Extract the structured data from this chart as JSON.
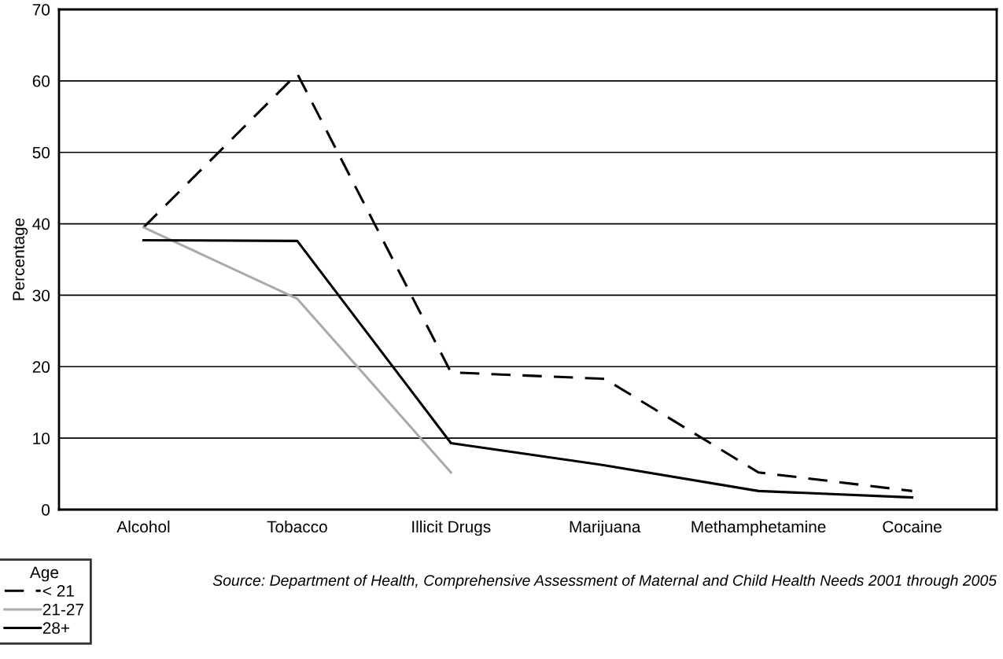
{
  "chart_data": {
    "type": "line",
    "ylabel": "Percentage",
    "categories": [
      "Alcohol",
      "Tobacco",
      "Illicit Drugs",
      "Marijuana",
      "Methamphetamine",
      "Cocaine"
    ],
    "series": [
      {
        "name": "< 21",
        "color": "#000000",
        "line_style": "dashed",
        "values": [
          39.5,
          61,
          19.2,
          18.3,
          5.2,
          2.6
        ]
      },
      {
        "name": "21-27",
        "color": "#aaaaaa",
        "line_style": "solid",
        "values": [
          39.5,
          29.5,
          5.2,
          null,
          null,
          null
        ]
      },
      {
        "name": "28+",
        "color": "#000000",
        "line_style": "solid",
        "values": [
          37.7,
          37.6,
          9.3,
          6.2,
          2.6,
          1.7
        ]
      }
    ],
    "ylim": [
      0,
      70
    ],
    "yticks": [
      0,
      10,
      20,
      30,
      40,
      50,
      60,
      70
    ],
    "grid": "y",
    "legend": "bottom left",
    "legend_title": "Age",
    "marker": "none",
    "annotations": [
      "Source: Department of Health, Comprehensive Assessment of Maternal and Child Health Needs 2001 through 2005"
    ]
  }
}
